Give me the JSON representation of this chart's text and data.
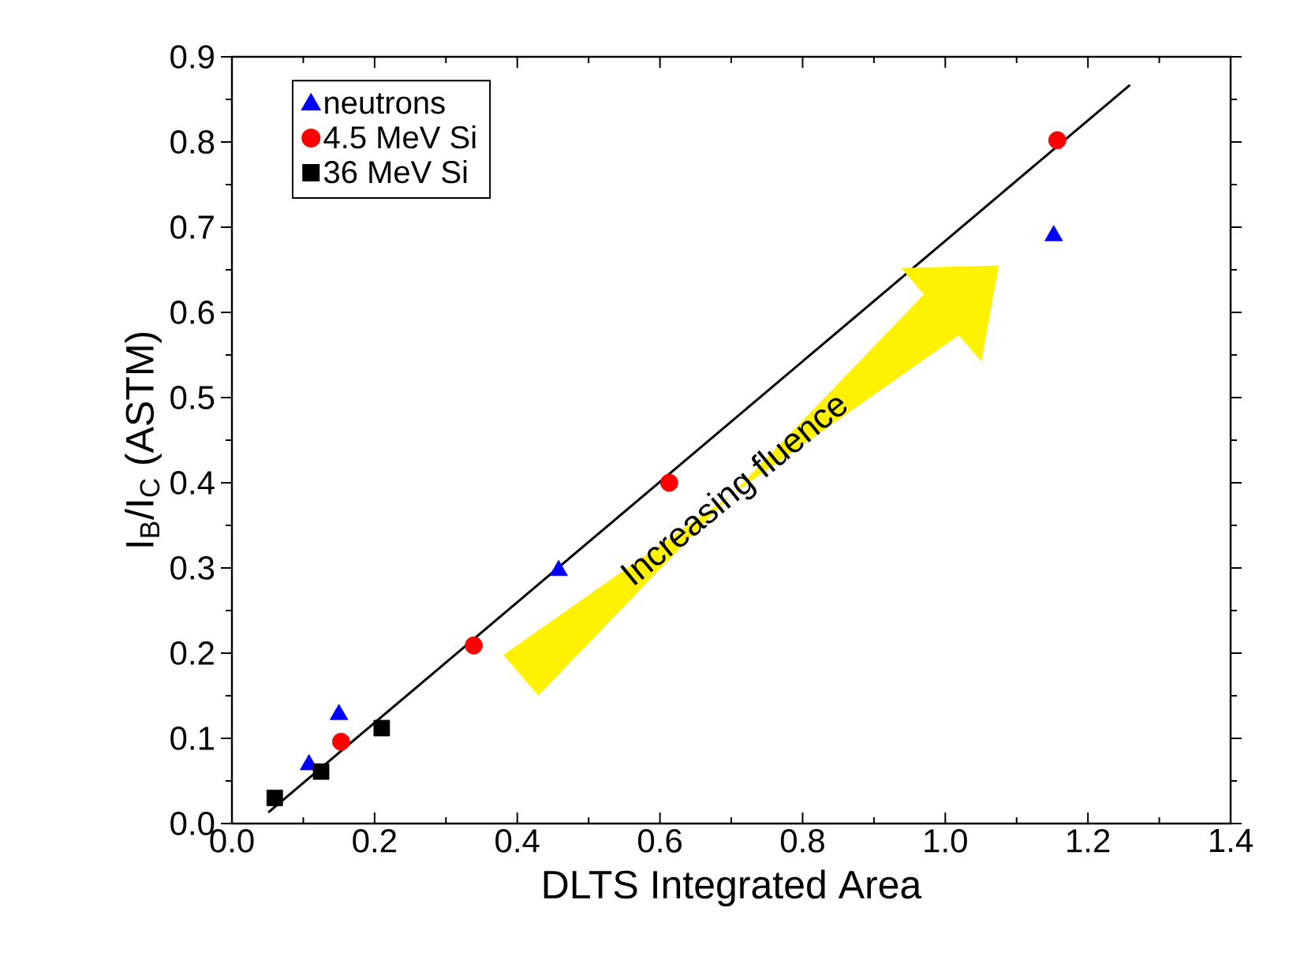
{
  "chart_data": {
    "type": "scatter",
    "xlabel": "DLTS Integrated Area",
    "ylabel": "I$_{B}$/I$_{C}$ (ASTM)",
    "annotations": [
      "Increasing fluence"
    ],
    "xlim": [
      0,
      1.4
    ],
    "ylim": [
      0,
      0.9
    ],
    "xticks": [
      {
        "value": 0,
        "label": "0.0"
      },
      0.2,
      0.4,
      0.6,
      0.8,
      {
        "value": 1,
        "label": "1.0"
      },
      1.2,
      1.4
    ],
    "yticks": [
      {
        "value": 0,
        "label": "0.0"
      },
      0.1,
      0.2,
      0.3,
      0.4,
      0.5,
      0.6,
      0.7,
      0.8,
      0.9
    ],
    "legend": "top left",
    "grid": false,
    "series": [
      {
        "name": "neutrons",
        "color": "#0000ff",
        "marker": "triangle",
        "x": [
          0.108,
          0.15,
          0.458,
          1.152
        ],
        "values": [
          0.069,
          0.128,
          0.297,
          0.69
        ]
      },
      {
        "name": "4.5 MeV Si",
        "color": "#ff0000",
        "marker": "circle",
        "x": [
          0.153,
          0.339,
          0.613,
          1.157
        ],
        "values": [
          0.096,
          0.209,
          0.4,
          0.802
        ]
      },
      {
        "name": "36 MeV Si",
        "color": "#000000",
        "marker": "square",
        "x": [
          0.06,
          0.125,
          0.21
        ],
        "values": [
          0.03,
          0.061,
          0.112
        ]
      },
      {
        "type": "line",
        "color": "#000000",
        "marker": "none",
        "x": [
          0.051,
          1.259
        ],
        "values": [
          0.013,
          0.867
        ]
      }
    ]
  }
}
